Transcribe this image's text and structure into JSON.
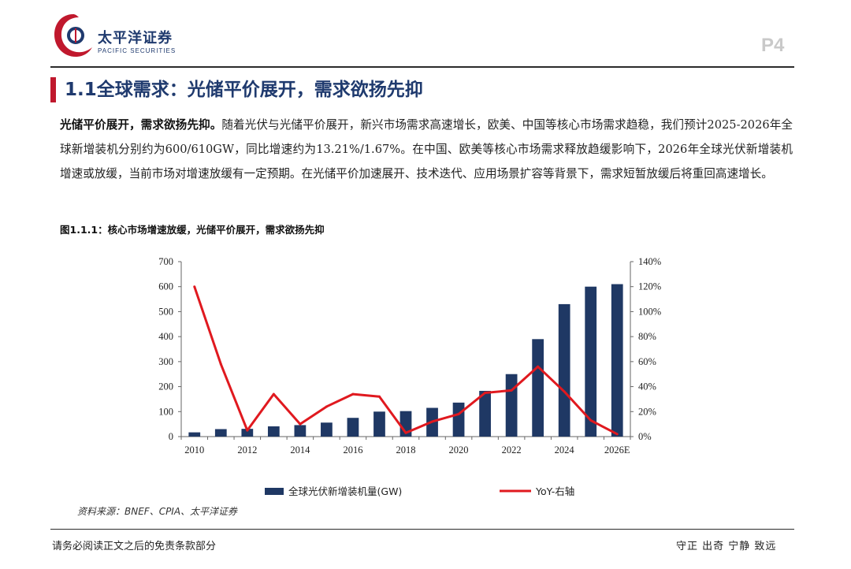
{
  "header": {
    "logo_cn": "太平洋证券",
    "logo_en": "PACIFIC SECURITIES",
    "page_number": "P4"
  },
  "section": {
    "title": "1.1全球需求：光储平价展开，需求欲扬先抑"
  },
  "body": {
    "lead": "光储平价展开，需求欲扬先抑。",
    "text": "随着光伏与光储平价展开，新兴市场需求高速增长，欧美、中国等核心市场需求趋稳，我们预计2025-2026年全球新增装机分别约为600/610GW，同比增速约为13.21%/1.67%。在中国、欧美等核心市场需求释放趋缓影响下，2026年全球光伏新增装机增速或放缓，当前市场对增速放缓有一定预期。在光储平价加速展开、技术迭代、应用场景扩容等背景下，需求短暂放缓后将重回高速增长。"
  },
  "figure": {
    "caption": "图1.1.1：核心市场增速放缓，光储平价展开，需求欲扬先抑",
    "source": "资料来源：BNEF、CPIA、太平洋证券"
  },
  "footer": {
    "left": "请务必阅读正文之后的免责条款部分",
    "right": "守正 出奇 宁静 致远"
  },
  "colors": {
    "bar": "#1f3864",
    "line": "#e0191f",
    "title": "#1f3a6e",
    "accent": "#c0182d"
  },
  "chart_data": {
    "type": "bar+line",
    "title": "",
    "categories": [
      "2010",
      "2011",
      "2012",
      "2013",
      "2014",
      "2015",
      "2016",
      "2017",
      "2018",
      "2019",
      "2020",
      "2021",
      "2022",
      "2023",
      "2024",
      "2025E",
      "2026E"
    ],
    "x_tick_labels": [
      "2010",
      "",
      "2012",
      "",
      "2014",
      "",
      "2016",
      "",
      "2018",
      "",
      "2020",
      "",
      "2022",
      "",
      "2024",
      "",
      "2026E"
    ],
    "series": [
      {
        "name": "全球光伏新增装机量(GW)",
        "type": "bar",
        "axis": "left",
        "values": [
          17,
          30,
          31,
          41,
          46,
          56,
          75,
          100,
          102,
          115,
          136,
          183,
          250,
          390,
          530,
          600,
          610
        ]
      },
      {
        "name": "YoY-右轴",
        "type": "line",
        "axis": "right",
        "values": [
          1.2,
          0.58,
          0.05,
          0.34,
          0.1,
          0.24,
          0.34,
          0.32,
          0.03,
          0.12,
          0.18,
          0.35,
          0.37,
          0.56,
          0.36,
          0.13,
          0.02
        ]
      }
    ],
    "y_left": {
      "min": 0,
      "max": 700,
      "ticks": [
        0,
        100,
        200,
        300,
        400,
        500,
        600,
        700
      ]
    },
    "y_right": {
      "min": 0,
      "max": 1.4,
      "ticks": [
        0,
        0.2,
        0.4,
        0.6,
        0.8,
        1.0,
        1.2,
        1.4
      ],
      "tick_labels": [
        "0%",
        "20%",
        "40%",
        "60%",
        "80%",
        "100%",
        "120%",
        "140%"
      ]
    },
    "legend_position": "bottom",
    "grid": false
  }
}
